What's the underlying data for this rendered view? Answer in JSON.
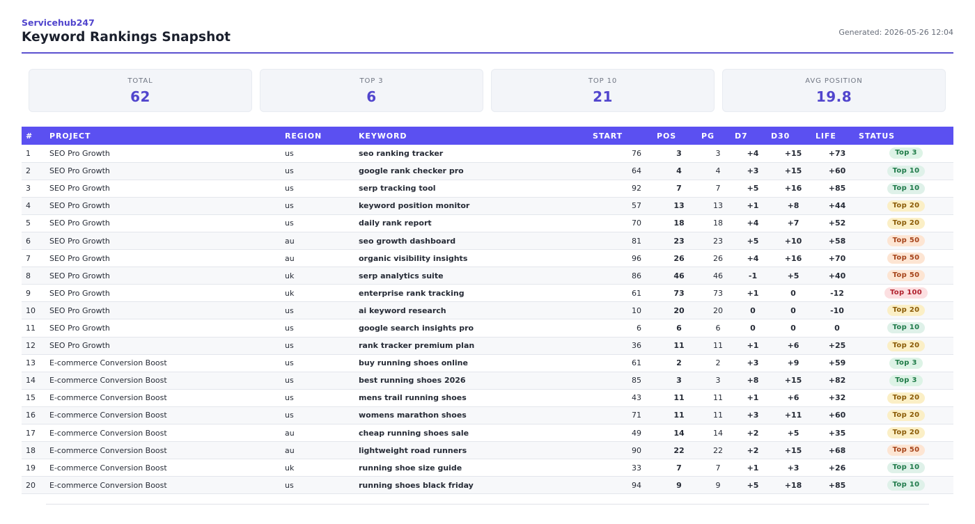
{
  "header": {
    "brand": "Servicehub247",
    "title": "Keyword Rankings Snapshot",
    "generated": "Generated: 2026-05-26 12:04"
  },
  "stats": [
    {
      "label": "TOTAL",
      "value": "62"
    },
    {
      "label": "TOP 3",
      "value": "6"
    },
    {
      "label": "TOP 10",
      "value": "21"
    },
    {
      "label": "AVG POSITION",
      "value": "19.8"
    }
  ],
  "table": {
    "columns": [
      "#",
      "PROJECT",
      "REGION",
      "KEYWORD",
      "START",
      "POS",
      "PG",
      "D7",
      "D30",
      "LIFE",
      "STATUS"
    ],
    "rows": [
      {
        "n": "1",
        "project": "SEO Pro Growth",
        "region": "us",
        "keyword": "seo ranking tracker",
        "start": "76",
        "pos": "3",
        "pg": "3",
        "d7": "+4",
        "d30": "+15",
        "life": "+73",
        "status": "Top 3"
      },
      {
        "n": "2",
        "project": "SEO Pro Growth",
        "region": "us",
        "keyword": "google rank checker pro",
        "start": "64",
        "pos": "4",
        "pg": "4",
        "d7": "+3",
        "d30": "+15",
        "life": "+60",
        "status": "Top 10"
      },
      {
        "n": "3",
        "project": "SEO Pro Growth",
        "region": "us",
        "keyword": "serp tracking tool",
        "start": "92",
        "pos": "7",
        "pg": "7",
        "d7": "+5",
        "d30": "+16",
        "life": "+85",
        "status": "Top 10"
      },
      {
        "n": "4",
        "project": "SEO Pro Growth",
        "region": "us",
        "keyword": "keyword position monitor",
        "start": "57",
        "pos": "13",
        "pg": "13",
        "d7": "+1",
        "d30": "+8",
        "life": "+44",
        "status": "Top 20"
      },
      {
        "n": "5",
        "project": "SEO Pro Growth",
        "region": "us",
        "keyword": "daily rank report",
        "start": "70",
        "pos": "18",
        "pg": "18",
        "d7": "+4",
        "d30": "+7",
        "life": "+52",
        "status": "Top 20"
      },
      {
        "n": "6",
        "project": "SEO Pro Growth",
        "region": "au",
        "keyword": "seo growth dashboard",
        "start": "81",
        "pos": "23",
        "pg": "23",
        "d7": "+5",
        "d30": "+10",
        "life": "+58",
        "status": "Top 50"
      },
      {
        "n": "7",
        "project": "SEO Pro Growth",
        "region": "au",
        "keyword": "organic visibility insights",
        "start": "96",
        "pos": "26",
        "pg": "26",
        "d7": "+4",
        "d30": "+16",
        "life": "+70",
        "status": "Top 50"
      },
      {
        "n": "8",
        "project": "SEO Pro Growth",
        "region": "uk",
        "keyword": "serp analytics suite",
        "start": "86",
        "pos": "46",
        "pg": "46",
        "d7": "-1",
        "d30": "+5",
        "life": "+40",
        "status": "Top 50"
      },
      {
        "n": "9",
        "project": "SEO Pro Growth",
        "region": "uk",
        "keyword": "enterprise rank tracking",
        "start": "61",
        "pos": "73",
        "pg": "73",
        "d7": "+1",
        "d30": "0",
        "life": "-12",
        "status": "Top 100"
      },
      {
        "n": "10",
        "project": "SEO Pro Growth",
        "region": "us",
        "keyword": "ai keyword research",
        "start": "10",
        "pos": "20",
        "pg": "20",
        "d7": "0",
        "d30": "0",
        "life": "-10",
        "status": "Top 20"
      },
      {
        "n": "11",
        "project": "SEO Pro Growth",
        "region": "us",
        "keyword": "google search insights pro",
        "start": "6",
        "pos": "6",
        "pg": "6",
        "d7": "0",
        "d30": "0",
        "life": "0",
        "status": "Top 10"
      },
      {
        "n": "12",
        "project": "SEO Pro Growth",
        "region": "us",
        "keyword": "rank tracker premium plan",
        "start": "36",
        "pos": "11",
        "pg": "11",
        "d7": "+1",
        "d30": "+6",
        "life": "+25",
        "status": "Top 20"
      },
      {
        "n": "13",
        "project": "E-commerce Conversion Boost",
        "region": "us",
        "keyword": "buy running shoes online",
        "start": "61",
        "pos": "2",
        "pg": "2",
        "d7": "+3",
        "d30": "+9",
        "life": "+59",
        "status": "Top 3"
      },
      {
        "n": "14",
        "project": "E-commerce Conversion Boost",
        "region": "us",
        "keyword": "best running shoes 2026",
        "start": "85",
        "pos": "3",
        "pg": "3",
        "d7": "+8",
        "d30": "+15",
        "life": "+82",
        "status": "Top 3"
      },
      {
        "n": "15",
        "project": "E-commerce Conversion Boost",
        "region": "us",
        "keyword": "mens trail running shoes",
        "start": "43",
        "pos": "11",
        "pg": "11",
        "d7": "+1",
        "d30": "+6",
        "life": "+32",
        "status": "Top 20"
      },
      {
        "n": "16",
        "project": "E-commerce Conversion Boost",
        "region": "us",
        "keyword": "womens marathon shoes",
        "start": "71",
        "pos": "11",
        "pg": "11",
        "d7": "+3",
        "d30": "+11",
        "life": "+60",
        "status": "Top 20"
      },
      {
        "n": "17",
        "project": "E-commerce Conversion Boost",
        "region": "au",
        "keyword": "cheap running shoes sale",
        "start": "49",
        "pos": "14",
        "pg": "14",
        "d7": "+2",
        "d30": "+5",
        "life": "+35",
        "status": "Top 20"
      },
      {
        "n": "18",
        "project": "E-commerce Conversion Boost",
        "region": "au",
        "keyword": "lightweight road runners",
        "start": "90",
        "pos": "22",
        "pg": "22",
        "d7": "+2",
        "d30": "+15",
        "life": "+68",
        "status": "Top 50"
      },
      {
        "n": "19",
        "project": "E-commerce Conversion Boost",
        "region": "uk",
        "keyword": "running shoe size guide",
        "start": "33",
        "pos": "7",
        "pg": "7",
        "d7": "+1",
        "d30": "+3",
        "life": "+26",
        "status": "Top 10"
      },
      {
        "n": "20",
        "project": "E-commerce Conversion Boost",
        "region": "us",
        "keyword": "running shoes black friday",
        "start": "94",
        "pos": "9",
        "pg": "9",
        "d7": "+5",
        "d30": "+18",
        "life": "+85",
        "status": "Top 10"
      }
    ]
  },
  "colors": {
    "accent": "#5b50f1",
    "positive": "#2e9b57",
    "negative": "#c0262d"
  }
}
